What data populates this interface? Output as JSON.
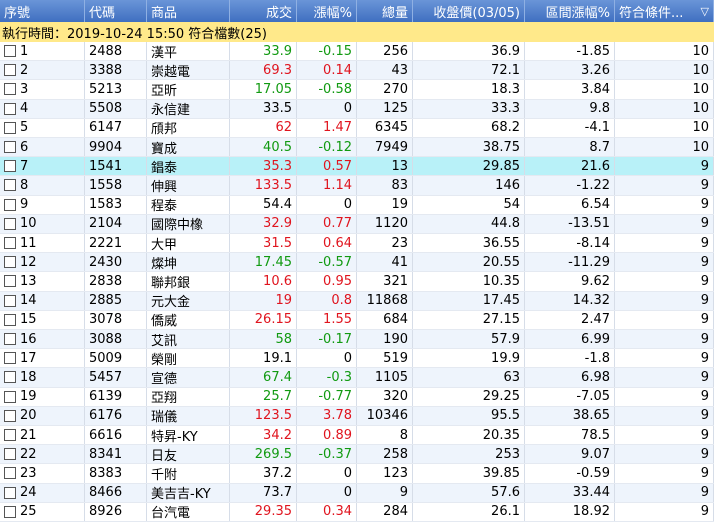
{
  "header": {
    "columns": [
      "序號",
      "代碼",
      "商品",
      "成交",
      "漲幅%",
      "總量",
      "收盤價(03/05)",
      "區間漲幅%",
      "符合條件..."
    ]
  },
  "info": "執行時間：2019-10-24 15:50 符合檔數(25)",
  "table": {
    "rows": [
      [
        1,
        "2488",
        "漢平",
        33.9,
        -0.15,
        256,
        36.9,
        -1.85,
        10
      ],
      [
        2,
        "3388",
        "崇越電",
        69.3,
        0.14,
        43,
        72.1,
        3.26,
        10
      ],
      [
        3,
        "5213",
        "亞昕",
        17.05,
        -0.58,
        270,
        18.3,
        3.84,
        10
      ],
      [
        4,
        "5508",
        "永信建",
        33.5,
        0,
        125,
        33.3,
        9.8,
        10
      ],
      [
        5,
        "6147",
        "頎邦",
        62,
        1.47,
        6345,
        68.2,
        -4.1,
        10
      ],
      [
        6,
        "9904",
        "寶成",
        40.5,
        -0.12,
        7949,
        38.75,
        8.7,
        10
      ],
      [
        7,
        "1541",
        "錩泰",
        35.3,
        0.57,
        13,
        29.85,
        21.6,
        9
      ],
      [
        8,
        "1558",
        "伸興",
        133.5,
        1.14,
        83,
        146,
        -1.22,
        9
      ],
      [
        9,
        "1583",
        "程泰",
        54.4,
        0,
        19,
        54,
        6.54,
        9
      ],
      [
        10,
        "2104",
        "國際中橡",
        32.9,
        0.77,
        1120,
        44.8,
        -13.51,
        9
      ],
      [
        11,
        "2221",
        "大甲",
        31.5,
        0.64,
        23,
        36.55,
        -8.14,
        9
      ],
      [
        12,
        "2430",
        "燦坤",
        17.45,
        -0.57,
        41,
        20.55,
        -11.29,
        9
      ],
      [
        13,
        "2838",
        "聯邦銀",
        10.6,
        0.95,
        321,
        10.35,
        9.62,
        9
      ],
      [
        14,
        "2885",
        "元大金",
        19,
        0.8,
        11868,
        17.45,
        14.32,
        9
      ],
      [
        15,
        "3078",
        "僑威",
        26.15,
        1.55,
        684,
        27.15,
        2.47,
        9
      ],
      [
        16,
        "3088",
        "艾訊",
        58,
        -0.17,
        190,
        57.9,
        6.99,
        9
      ],
      [
        17,
        "5009",
        "榮剛",
        19.1,
        0,
        519,
        19.9,
        -1.8,
        9
      ],
      [
        18,
        "5457",
        "宣德",
        67.4,
        -0.3,
        1105,
        63,
        6.98,
        9
      ],
      [
        19,
        "6139",
        "亞翔",
        25.7,
        -0.77,
        320,
        29.25,
        -7.05,
        9
      ],
      [
        20,
        "6176",
        "瑞儀",
        123.5,
        3.78,
        10346,
        95.5,
        38.65,
        9
      ],
      [
        21,
        "6616",
        "特昇-KY",
        34.2,
        0.89,
        8,
        20.35,
        78.5,
        9
      ],
      [
        22,
        "8341",
        "日友",
        269.5,
        -0.37,
        258,
        253,
        9.07,
        9
      ],
      [
        23,
        "8383",
        "千附",
        37.2,
        0,
        123,
        39.85,
        -0.59,
        9
      ],
      [
        24,
        "8466",
        "美吉吉-KY",
        73.7,
        0,
        9,
        57.6,
        33.44,
        9
      ],
      [
        25,
        "8926",
        "台汽電",
        29.35,
        0.34,
        284,
        26.1,
        18.92,
        9
      ]
    ]
  }
}
